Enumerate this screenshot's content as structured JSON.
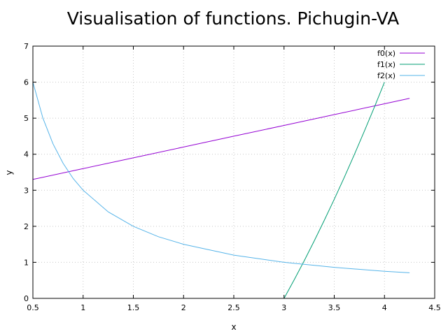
{
  "chart_data": {
    "type": "line",
    "title": "Visualisation of functions. Pichugin-VA",
    "xlabel": "x",
    "ylabel": "y",
    "xlim": [
      0.5,
      4.5
    ],
    "ylim": [
      0,
      7
    ],
    "xticks": [
      "0.5",
      "1",
      "1.5",
      "2",
      "2.5",
      "3",
      "3.5",
      "4",
      "4.5"
    ],
    "yticks": [
      "0",
      "1",
      "2",
      "3",
      "4",
      "5",
      "6",
      "7"
    ],
    "grid": true,
    "legend": "top-right",
    "series": [
      {
        "name": "f0(x)",
        "color": "#9400d3",
        "x": [
          0.5,
          1.0,
          1.5,
          2.0,
          2.5,
          3.0,
          3.5,
          4.0,
          4.25
        ],
        "y": [
          3.3,
          3.6,
          3.9,
          4.2,
          4.5,
          4.8,
          5.1,
          5.4,
          5.55
        ]
      },
      {
        "name": "f1(x)",
        "color": "#009e73",
        "x": [
          3.0,
          3.1,
          3.2,
          3.3,
          3.4,
          3.5,
          3.6,
          3.7,
          3.8,
          3.9,
          4.0
        ],
        "y": [
          0.0,
          0.51,
          1.04,
          1.59,
          2.16,
          2.75,
          3.36,
          3.99,
          4.64,
          5.31,
          6.0
        ]
      },
      {
        "name": "f2(x)",
        "color": "#56b4e9",
        "x": [
          0.5,
          0.6,
          0.7,
          0.8,
          0.9,
          1.0,
          1.25,
          1.5,
          1.75,
          2.0,
          2.5,
          3.0,
          3.5,
          4.0,
          4.25
        ],
        "y": [
          6.0,
          5.0,
          4.29,
          3.75,
          3.33,
          3.0,
          2.4,
          2.0,
          1.71,
          1.5,
          1.2,
          1.0,
          0.86,
          0.75,
          0.71
        ]
      }
    ]
  }
}
